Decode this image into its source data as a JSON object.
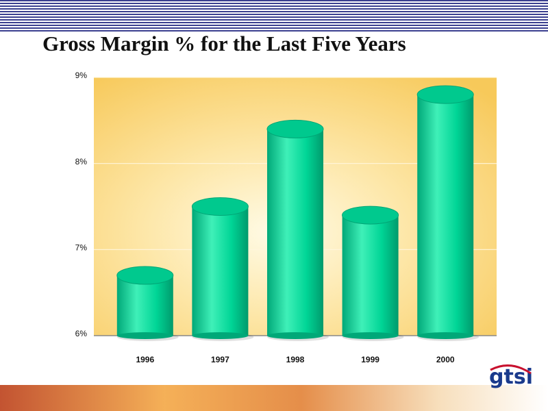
{
  "chart_data": {
    "type": "bar",
    "title": "Gross Margin % for the Last Five Years",
    "categories": [
      "1996",
      "1997",
      "1998",
      "1999",
      "2000"
    ],
    "values": [
      6.7,
      7.5,
      8.4,
      7.4,
      8.8
    ],
    "color": "#00c98e",
    "ylim": [
      6,
      9
    ],
    "yticks": [
      {
        "value": 6,
        "label": "6%"
      },
      {
        "value": 7,
        "label": "7%"
      },
      {
        "value": 8,
        "label": "8%"
      },
      {
        "value": 9,
        "label": "9%"
      }
    ],
    "grid": true
  },
  "logo": "gtsi"
}
